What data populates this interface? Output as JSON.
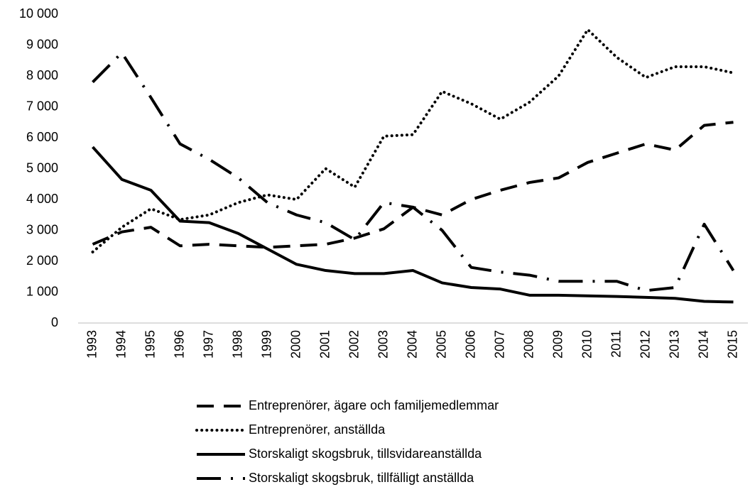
{
  "chart_data": {
    "type": "line",
    "categories": [
      "1993",
      "1994",
      "1995",
      "1996",
      "1997",
      "1998",
      "1999",
      "2000",
      "2001",
      "2002",
      "2003",
      "2004",
      "2005",
      "2006",
      "2007",
      "2008",
      "2009",
      "2010",
      "2011",
      "2012",
      "2013",
      "2014",
      "2015"
    ],
    "series": [
      {
        "name": "Entreprenörer, ägare och familjemedlemmar",
        "color": "#000000",
        "dash": "dashed",
        "values": [
          2550,
          2950,
          3100,
          2500,
          2550,
          2500,
          2450,
          2500,
          2550,
          2750,
          3050,
          3750,
          3500,
          4000,
          4300,
          4550,
          4700,
          5200,
          5500,
          5800,
          5600,
          6400,
          6500
        ]
      },
      {
        "name": "Entreprenörer, anställda",
        "color": "#000000",
        "dash": "dotted",
        "values": [
          2300,
          3100,
          3700,
          3350,
          3500,
          3900,
          4150,
          4000,
          5000,
          4400,
          6050,
          6100,
          7500,
          7100,
          6600,
          7150,
          8000,
          9500,
          8600,
          7950,
          8300,
          8300,
          8100
        ]
      },
      {
        "name": "Storskaligt skogsbruk, tillsvidareanställda",
        "color": "#000000",
        "dash": "solid",
        "values": [
          5700,
          4650,
          4300,
          3300,
          3250,
          2900,
          2400,
          1900,
          1700,
          1600,
          1600,
          1700,
          1300,
          1150,
          1100,
          900,
          900,
          880,
          860,
          830,
          800,
          700,
          680
        ]
      },
      {
        "name": "Storskaligt skogsbruk, tillfälligt anställda",
        "color": "#000000",
        "dash": "dashdot",
        "values": [
          7800,
          8750,
          7300,
          5800,
          5300,
          4700,
          3900,
          3500,
          3250,
          2700,
          3900,
          3750,
          3000,
          1800,
          1650,
          1550,
          1350,
          1350,
          1350,
          1050,
          1150,
          3200,
          1700
        ]
      }
    ],
    "ylim": [
      0,
      10000
    ],
    "yticks": [
      0,
      {
        "value": 1000,
        "label": "1 000"
      },
      {
        "value": 2000,
        "label": "2 000"
      },
      {
        "value": 3000,
        "label": "3 000"
      },
      {
        "value": 4000,
        "label": "4 000"
      },
      {
        "value": 5000,
        "label": "5 000"
      },
      {
        "value": 6000,
        "label": "6 000"
      },
      {
        "value": 7000,
        "label": "7 000"
      },
      {
        "value": 8000,
        "label": "8 000"
      },
      {
        "value": 9000,
        "label": "9 000"
      },
      {
        "value": 10000,
        "label": "10 000"
      }
    ],
    "grid": false,
    "legend": "bottom"
  }
}
